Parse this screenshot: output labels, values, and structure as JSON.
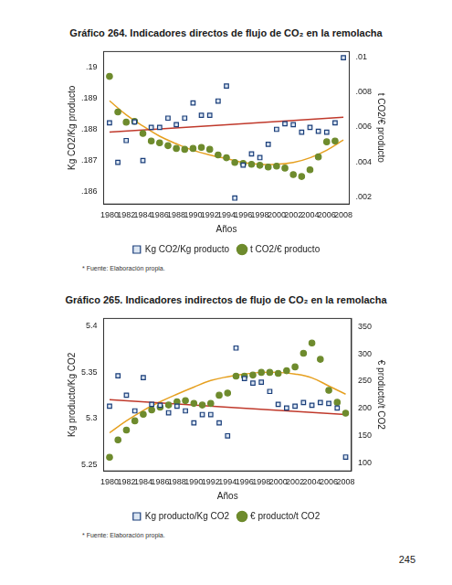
{
  "page_number": "245",
  "chart_data": [
    {
      "type": "scatter",
      "title": "Gráfico 264. Indicadores directos de flujo de CO₂ en la remolacha",
      "annotations": [
        "* Fuente: Elaboración propia."
      ],
      "x_label": "Años",
      "y_label": "Kg CO2/Kg producto",
      "y2_label": "t CO2/€ producto",
      "x": [
        1980,
        1981,
        1982,
        1983,
        1984,
        1985,
        1986,
        1987,
        1988,
        1989,
        1990,
        1991,
        1992,
        1993,
        1994,
        1995,
        1996,
        1997,
        1998,
        1999,
        2000,
        2001,
        2002,
        2003,
        2004,
        2005,
        2006,
        2007,
        2008
      ],
      "xlim": [
        1979.3,
        2008.7
      ],
      "xticks": [
        1980,
        1982,
        1984,
        1986,
        1988,
        1990,
        1992,
        1994,
        1996,
        1998,
        2000,
        2002,
        2004,
        2006,
        2008
      ],
      "ylim": [
        0.1856,
        0.1905
      ],
      "yticks": [
        {
          "value": 0.186,
          "label": ".186"
        },
        {
          "value": 0.187,
          "label": ".187"
        },
        {
          "value": 0.188,
          "label": ".188"
        },
        {
          "value": 0.189,
          "label": ".189"
        },
        {
          "value": 0.19,
          "label": ".19"
        }
      ],
      "y2lim": [
        0.0016,
        0.0103
      ],
      "y2ticks": [
        {
          "value": 0.002,
          "label": ".002"
        },
        {
          "value": 0.004,
          "label": ".004"
        },
        {
          "value": 0.006,
          "label": ".006"
        },
        {
          "value": 0.008,
          "label": ".008"
        },
        {
          "value": 0.01,
          "label": ".01"
        }
      ],
      "grid": false,
      "legend": "bottom",
      "series": [
        {
          "name": "Kg CO2/Kg producto",
          "color": "#1a3e7a",
          "marker": "square",
          "values": [
            0.18821,
            0.18694,
            0.18764,
            0.18824,
            0.187,
            0.18806,
            0.18806,
            0.18836,
            0.18815,
            0.18836,
            0.18885,
            0.18845,
            0.18845,
            0.18891,
            0.18939,
            0.18579,
            0.18685,
            0.18721,
            0.18709,
            0.18752,
            0.188,
            0.18818,
            0.18815,
            0.18791,
            0.18806,
            0.18794,
            0.18791,
            0.18821,
            0.1903
          ]
        },
        {
          "name": "t CO2/€ producto",
          "color": "#6e8b2d",
          "marker": "circle",
          "axis": "y2",
          "values": [
            0.00888,
            0.00685,
            0.00627,
            0.00632,
            0.00563,
            0.0052,
            0.00509,
            0.00493,
            0.00477,
            0.00472,
            0.00477,
            0.00483,
            0.00472,
            0.0044,
            0.00424,
            0.00397,
            0.00392,
            0.00387,
            0.00381,
            0.00371,
            0.00376,
            0.00365,
            0.00328,
            0.00317,
            0.00355,
            0.00429,
            0.00515,
            0.0052,
            null
          ]
        },
        {
          "type": "line",
          "color": "#c0392b",
          "line_style": "solid",
          "x": [
            1980,
            2008
          ],
          "values": [
            0.18791,
            0.18839
          ]
        },
        {
          "type": "line",
          "color": "#e6a020",
          "line_style": "solid",
          "axis": "y2",
          "x": [
            1980,
            1982,
            1984,
            1986,
            1988,
            1990,
            1992,
            1994,
            1996,
            1998,
            2000,
            2002,
            2004,
            2006,
            2008
          ],
          "values": [
            0.00749,
            0.00669,
            0.00605,
            0.00547,
            0.00504,
            0.00467,
            0.0044,
            0.00419,
            0.00397,
            0.00387,
            0.00387,
            0.00397,
            0.00424,
            0.00467,
            0.00525
          ]
        }
      ]
    },
    {
      "type": "scatter",
      "title": "Gráfico 265. Indicadores indirectos de flujo de CO₂ en la remolacha",
      "annotations": [
        "* Fuente: Elaboración propia."
      ],
      "x_label": "Años",
      "y_label": "Kg producto/Kg CO2",
      "y2_label": "€ producto/t CO2",
      "x": [
        1980,
        1981,
        1982,
        1983,
        1984,
        1985,
        1986,
        1987,
        1988,
        1989,
        1990,
        1991,
        1992,
        1993,
        1994,
        1995,
        1996,
        1997,
        1998,
        1999,
        2000,
        2001,
        2002,
        2003,
        2004,
        2005,
        2006,
        2007,
        2008
      ],
      "xlim": [
        1979.3,
        2008.7
      ],
      "xticks": [
        1980,
        1982,
        1984,
        1986,
        1988,
        1990,
        1992,
        1994,
        1996,
        1998,
        2000,
        2002,
        2004,
        2006,
        2008
      ],
      "ylim": [
        5.243,
        5.408
      ],
      "yticks": [
        5.25,
        5.3,
        5.35,
        5.4
      ],
      "y2lim": [
        85,
        365
      ],
      "y2ticks": [
        100,
        150,
        200,
        250,
        300,
        350
      ],
      "grid": false,
      "legend": "bottom",
      "series": [
        {
          "name": "Kg producto/Kg CO2",
          "color": "#1a3e7a",
          "marker": "square",
          "values": [
            5.313,
            5.346,
            5.325,
            5.308,
            5.344,
            5.315,
            5.314,
            5.306,
            5.313,
            5.308,
            5.295,
            5.304,
            5.304,
            5.295,
            5.281,
            5.376,
            5.343,
            5.338,
            5.339,
            5.329,
            5.315,
            5.311,
            5.313,
            5.317,
            5.314,
            5.317,
            5.316,
            5.311,
            5.258
          ]
        },
        {
          "name": "€ producto/t CO2",
          "color": "#6e8b2d",
          "marker": "circle",
          "axis": "y2",
          "values": [
            110,
            142,
            160,
            177,
            189,
            197,
            202,
            206,
            212,
            214,
            209,
            206,
            209,
            224,
            228,
            259,
            259,
            261,
            266,
            266,
            264,
            269,
            276,
            301,
            320,
            290,
            233,
            211,
            191
          ]
        },
        {
          "type": "line",
          "color": "#c0392b",
          "line_style": "solid",
          "x": [
            1980,
            2008
          ],
          "values": [
            5.32,
            5.304
          ]
        },
        {
          "type": "line",
          "color": "#e6a020",
          "line_style": "solid",
          "axis": "y2",
          "x": [
            1980,
            1982,
            1984,
            1986,
            1988,
            1990,
            1992,
            1994,
            1996,
            1998,
            2000,
            2002,
            2004,
            2006,
            2008
          ],
          "values": [
            155,
            177,
            196,
            212,
            226,
            239,
            251,
            258,
            263,
            266,
            266,
            263,
            256,
            241,
            226
          ]
        }
      ]
    }
  ]
}
